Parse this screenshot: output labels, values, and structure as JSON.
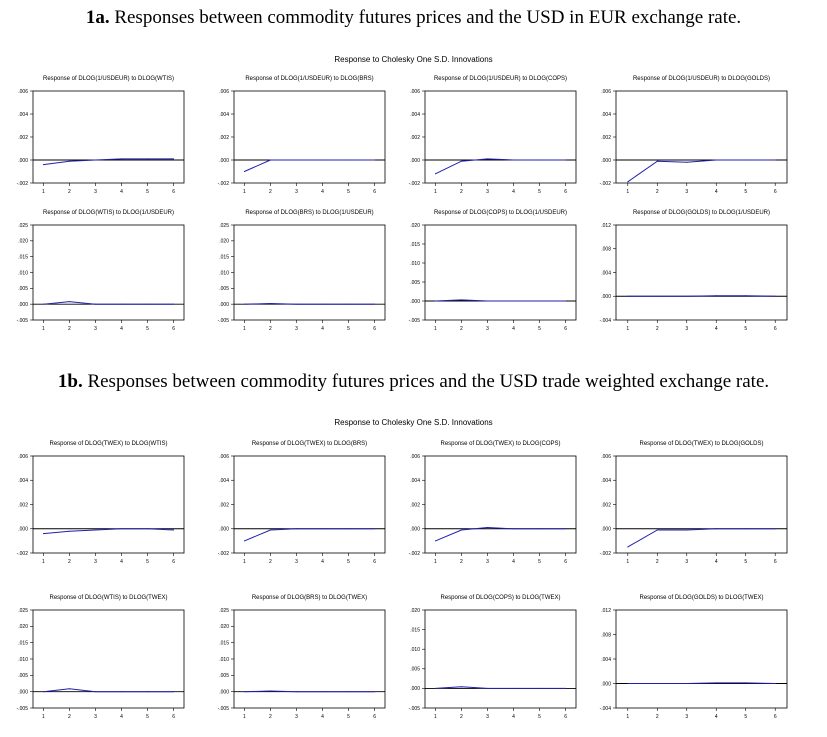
{
  "section_1a": {
    "label": "1a.",
    "title": " Responses between commodity futures prices and the USD in EUR exchange rate.",
    "group_title": "Response to Cholesky One S.D. Innovations"
  },
  "section_1b": {
    "label": "1b.",
    "title": " Responses between commodity futures prices and the USD trade weighted exchange rate.",
    "group_title": "Response to Cholesky One S.D. Innovations"
  },
  "colors": {
    "line": "#1f1fb0",
    "zero_line": "#000000",
    "frame": "#000000"
  },
  "chart_data": [
    {
      "type": "line",
      "title": "Response of DLOG(1/USDEUR) to DLOG(WTIS)",
      "x": [
        1,
        2,
        3,
        4,
        5,
        6
      ],
      "values": [
        -0.0004,
        -0.0001,
        0,
        0.0001,
        0.0001,
        0.0001
      ],
      "ylim": [
        -0.002,
        0.006
      ],
      "yticks": [
        "-.002",
        ".000",
        ".002",
        ".004",
        ".006"
      ],
      "xticks": [
        "1",
        "2",
        "3",
        "4",
        "5",
        "6"
      ]
    },
    {
      "type": "line",
      "title": "Response of DLOG(1/USDEUR) to DLOG(BRS)",
      "x": [
        1,
        2,
        3,
        4,
        5,
        6
      ],
      "values": [
        -0.001,
        0,
        0,
        0,
        0,
        0
      ],
      "ylim": [
        -0.002,
        0.006
      ],
      "yticks": [
        "-.002",
        ".000",
        ".002",
        ".004",
        ".006"
      ],
      "xticks": [
        "1",
        "2",
        "3",
        "4",
        "5",
        "6"
      ]
    },
    {
      "type": "line",
      "title": "Response of DLOG(1/USDEUR) to DLOG(COPS)",
      "x": [
        1,
        2,
        3,
        4,
        5,
        6
      ],
      "values": [
        -0.0012,
        -0.0001,
        0.0001,
        0,
        0,
        0
      ],
      "ylim": [
        -0.002,
        0.006
      ],
      "yticks": [
        "-.002",
        ".000",
        ".002",
        ".004",
        ".006"
      ],
      "xticks": [
        "1",
        "2",
        "3",
        "4",
        "5",
        "6"
      ]
    },
    {
      "type": "line",
      "title": "Response of DLOG(1/USDEUR) to DLOG(GOLDS)",
      "x": [
        1,
        2,
        3,
        4,
        5,
        6
      ],
      "values": [
        -0.0019,
        -0.0001,
        -0.0002,
        0,
        0,
        0
      ],
      "ylim": [
        -0.002,
        0.006
      ],
      "yticks": [
        "-.002",
        ".000",
        ".002",
        ".004",
        ".006"
      ],
      "xticks": [
        "1",
        "2",
        "3",
        "4",
        "5",
        "6"
      ]
    },
    {
      "type": "line",
      "title": "Response of DLOG(WTIS) to DLOG(1/USDEUR)",
      "x": [
        1,
        2,
        3,
        4,
        5,
        6
      ],
      "values": [
        0,
        0.0008,
        0,
        0,
        0,
        0
      ],
      "ylim": [
        -0.005,
        0.025
      ],
      "yticks": [
        "-.005",
        ".000",
        ".005",
        ".010",
        ".015",
        ".020",
        ".025"
      ],
      "xticks": [
        "1",
        "2",
        "3",
        "4",
        "5",
        "6"
      ]
    },
    {
      "type": "line",
      "title": "Response of DLOG(BRS) to DLOG(1/USDEUR)",
      "x": [
        1,
        2,
        3,
        4,
        5,
        6
      ],
      "values": [
        0,
        0.0002,
        0,
        0,
        0,
        0
      ],
      "ylim": [
        -0.005,
        0.025
      ],
      "yticks": [
        "-.005",
        ".000",
        ".005",
        ".010",
        ".015",
        ".020",
        ".025"
      ],
      "xticks": [
        "1",
        "2",
        "3",
        "4",
        "5",
        "6"
      ]
    },
    {
      "type": "line",
      "title": "Response of DLOG(COPS) to DLOG(1/USDEUR)",
      "x": [
        1,
        2,
        3,
        4,
        5,
        6
      ],
      "values": [
        0,
        0.0003,
        0,
        0,
        0,
        0
      ],
      "ylim": [
        -0.005,
        0.02
      ],
      "yticks": [
        "-.005",
        ".000",
        ".005",
        ".010",
        ".015",
        ".020"
      ],
      "xticks": [
        "1",
        "2",
        "3",
        "4",
        "5",
        "6"
      ]
    },
    {
      "type": "line",
      "title": "Response of DLOG(GOLDS) to DLOG(1/USDEUR)",
      "x": [
        1,
        2,
        3,
        4,
        5,
        6
      ],
      "values": [
        0,
        0,
        0,
        0.0001,
        0.0001,
        0
      ],
      "ylim": [
        -0.004,
        0.012
      ],
      "yticks": [
        "-.004",
        ".000",
        ".004",
        ".008",
        ".012"
      ],
      "xticks": [
        "1",
        "2",
        "3",
        "4",
        "5",
        "6"
      ]
    },
    {
      "type": "line",
      "title": "Response of DLOG(TWEX) to DLOG(WTIS)",
      "x": [
        1,
        2,
        3,
        4,
        5,
        6
      ],
      "values": [
        -0.0004,
        -0.0002,
        -0.0001,
        0,
        0,
        -0.0001
      ],
      "ylim": [
        -0.002,
        0.006
      ],
      "yticks": [
        "-.002",
        ".000",
        ".002",
        ".004",
        ".006"
      ],
      "xticks": [
        "1",
        "2",
        "3",
        "4",
        "5",
        "6"
      ]
    },
    {
      "type": "line",
      "title": "Response of DLOG(TWEX) to DLOG(BRS)",
      "x": [
        1,
        2,
        3,
        4,
        5,
        6
      ],
      "values": [
        -0.001,
        -0.0001,
        0,
        0,
        0,
        0
      ],
      "ylim": [
        -0.002,
        0.006
      ],
      "yticks": [
        "-.002",
        ".000",
        ".002",
        ".004",
        ".006"
      ],
      "xticks": [
        "1",
        "2",
        "3",
        "4",
        "5",
        "6"
      ]
    },
    {
      "type": "line",
      "title": "Response of DLOG(TWEX) to DLOG(COPS)",
      "x": [
        1,
        2,
        3,
        4,
        5,
        6
      ],
      "values": [
        -0.001,
        -0.0001,
        0.0001,
        0,
        0,
        0
      ],
      "ylim": [
        -0.002,
        0.006
      ],
      "yticks": [
        "-.002",
        ".000",
        ".002",
        ".004",
        ".006"
      ],
      "xticks": [
        "1",
        "2",
        "3",
        "4",
        "5",
        "6"
      ]
    },
    {
      "type": "line",
      "title": "Response of DLOG(TWEX) to DLOG(GOLDS)",
      "x": [
        1,
        2,
        3,
        4,
        5,
        6
      ],
      "values": [
        -0.0015,
        -0.0001,
        -0.0001,
        0,
        0,
        0
      ],
      "ylim": [
        -0.002,
        0.006
      ],
      "yticks": [
        "-.002",
        ".000",
        ".002",
        ".004",
        ".006"
      ],
      "xticks": [
        "1",
        "2",
        "3",
        "4",
        "5",
        "6"
      ]
    },
    {
      "type": "line",
      "title": "Response of DLOG(WTIS) to DLOG(TWEX)",
      "x": [
        1,
        2,
        3,
        4,
        5,
        6
      ],
      "values": [
        0,
        0.0009,
        0,
        0,
        0,
        0
      ],
      "ylim": [
        -0.005,
        0.025
      ],
      "yticks": [
        "-.005",
        ".000",
        ".005",
        ".010",
        ".015",
        ".020",
        ".025"
      ],
      "xticks": [
        "1",
        "2",
        "3",
        "4",
        "5",
        "6"
      ]
    },
    {
      "type": "line",
      "title": "Response of DLOG(BRS) to DLOG(TWEX)",
      "x": [
        1,
        2,
        3,
        4,
        5,
        6
      ],
      "values": [
        0,
        0.0002,
        0,
        0,
        0,
        0
      ],
      "ylim": [
        -0.005,
        0.025
      ],
      "yticks": [
        "-.005",
        ".000",
        ".005",
        ".010",
        ".015",
        ".020",
        ".025"
      ],
      "xticks": [
        "1",
        "2",
        "3",
        "4",
        "5",
        "6"
      ]
    },
    {
      "type": "line",
      "title": "Response of DLOG(COPS) to DLOG(TWEX)",
      "x": [
        1,
        2,
        3,
        4,
        5,
        6
      ],
      "values": [
        0,
        0.0004,
        0,
        0,
        0,
        0
      ],
      "ylim": [
        -0.005,
        0.02
      ],
      "yticks": [
        "-.005",
        ".000",
        ".005",
        ".010",
        ".015",
        ".020"
      ],
      "xticks": [
        "1",
        "2",
        "3",
        "4",
        "5",
        "6"
      ]
    },
    {
      "type": "line",
      "title": "Response of DLOG(GOLDS) to DLOG(TWEX)",
      "x": [
        1,
        2,
        3,
        4,
        5,
        6
      ],
      "values": [
        0,
        0,
        0,
        0.0001,
        0.0001,
        0
      ],
      "ylim": [
        -0.004,
        0.012
      ],
      "yticks": [
        "-.004",
        ".000",
        ".004",
        ".008",
        ".012"
      ],
      "xticks": [
        "1",
        "2",
        "3",
        "4",
        "5",
        "6"
      ]
    }
  ]
}
